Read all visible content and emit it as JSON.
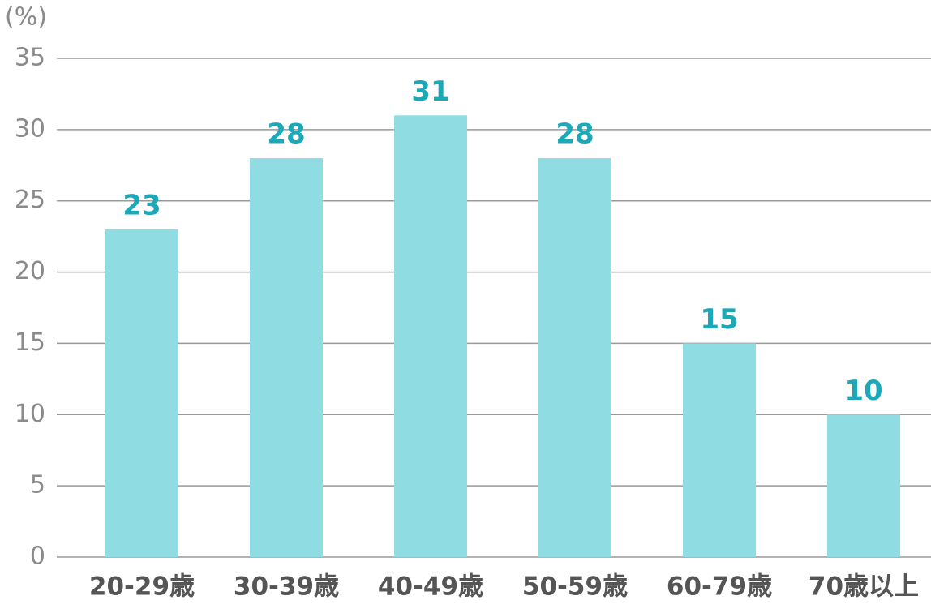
{
  "chart_data": {
    "type": "bar",
    "y_label": "(%)",
    "categories": [
      "20-29歳",
      "30-39歳",
      "40-49歳",
      "50-59歳",
      "60-79歳",
      "70歳以上"
    ],
    "values": [
      23,
      28,
      31,
      28,
      15,
      10
    ],
    "color": "#8fdce3",
    "label_color": "#1ba8b8",
    "ylim": [
      0,
      35
    ],
    "yticks": [
      0,
      5,
      10,
      15,
      20,
      25,
      30,
      35
    ],
    "grid": true
  }
}
